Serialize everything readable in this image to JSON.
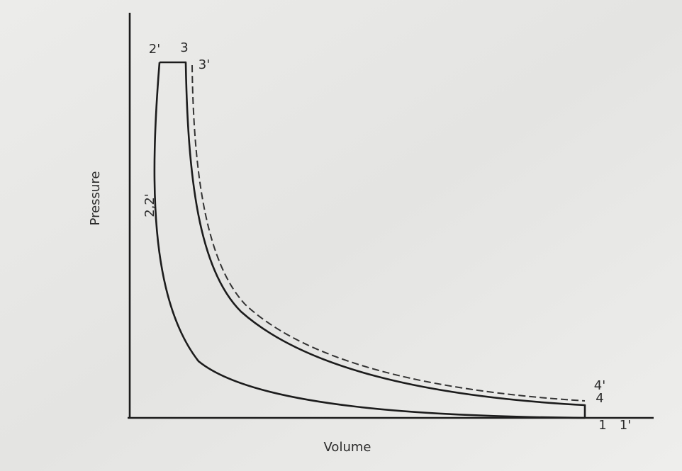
{
  "axes": {
    "x_label": "Volume",
    "y_label": "Pressure"
  },
  "labels": {
    "p2prime": "2'",
    "p3": "3",
    "p3prime": "3'",
    "p22": "2,2'",
    "p4prime": "4'",
    "p4": "4",
    "p1": "1",
    "p1prime": "1'"
  }
}
